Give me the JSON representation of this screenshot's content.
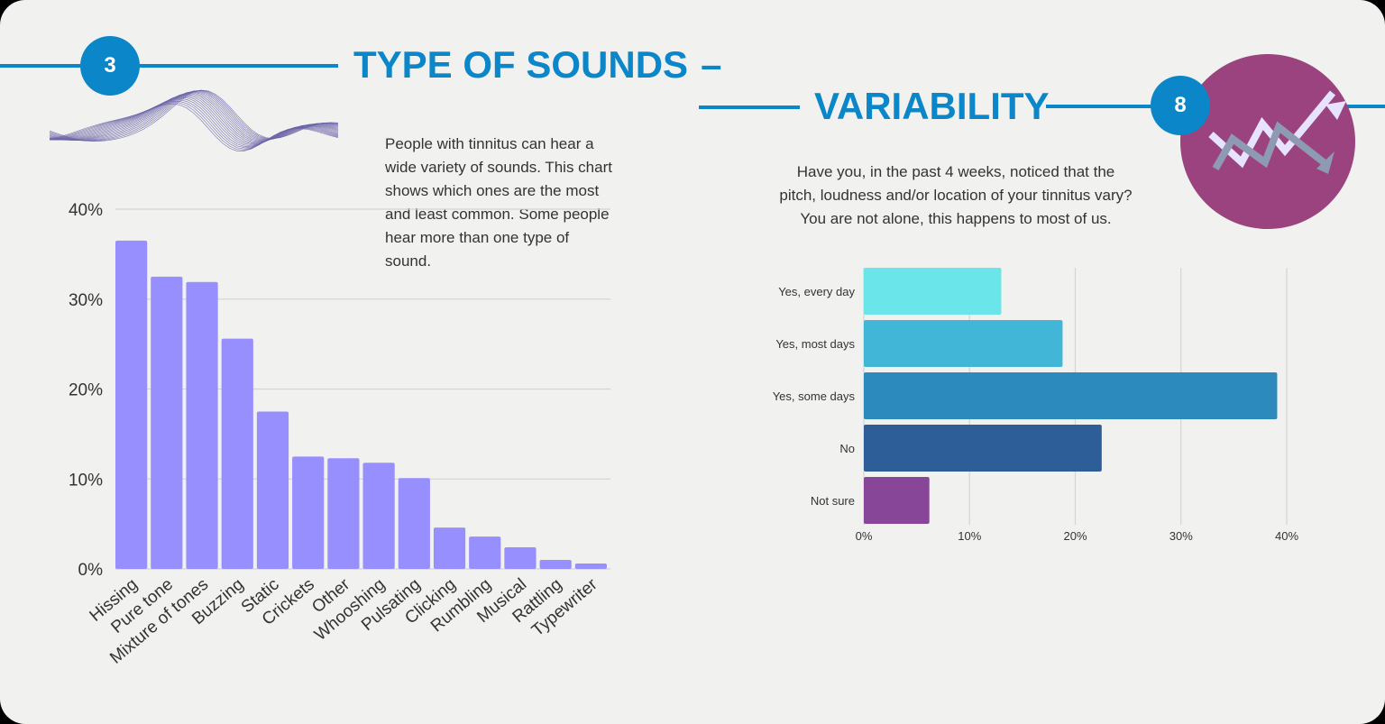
{
  "left": {
    "badge": "3",
    "title": "TYPE OF SOUNDS",
    "dash": "–",
    "description": [
      "People with tinnitus can hear a",
      "wide variety of sounds. This chart",
      "shows which ones are the most",
      "and least common. Some people",
      "hear more than one type of",
      "sound."
    ]
  },
  "right": {
    "badge": "8",
    "title": "VARIABILITY",
    "description": [
      "Have you, in the past 4 weeks, noticed that the",
      "pitch, loudness and/or location of your tinnitus vary?",
      "You are not alone, this happens to most of us."
    ],
    "icon": "zigzag-arrows-icon",
    "icon_circle_color": "#9b437e"
  },
  "chart_data": [
    {
      "type": "bar",
      "orientation": "vertical",
      "categories": [
        "Hissing",
        "Pure tone",
        "Mixture of tones",
        "Buzzing",
        "Static",
        "Crickets",
        "Other",
        "Whooshing",
        "Pulsating",
        "Clicking",
        "Rumbling",
        "Musical",
        "Rattling",
        "Typewriter"
      ],
      "values": [
        36.5,
        32.5,
        31.9,
        25.6,
        17.5,
        12.5,
        12.3,
        11.8,
        10.1,
        4.6,
        3.6,
        2.4,
        1.0,
        0.6
      ],
      "ylim": [
        0,
        40
      ],
      "yticks": [
        "0%",
        "10%",
        "20%",
        "30%",
        "40%"
      ],
      "grid": true,
      "color": "#978ffd"
    },
    {
      "type": "bar",
      "orientation": "horizontal",
      "categories": [
        "Yes, every day",
        "Yes, most days",
        "Yes, some days",
        "No",
        "Not sure"
      ],
      "values": [
        13.0,
        18.8,
        39.1,
        22.5,
        6.2
      ],
      "xlim": [
        0,
        40
      ],
      "xticks": [
        "0%",
        "10%",
        "20%",
        "30%",
        "40%"
      ],
      "grid": true,
      "colors": [
        "#6ae6ea",
        "#42b6d6",
        "#2d8abd",
        "#2e5e98",
        "#884698"
      ]
    }
  ]
}
